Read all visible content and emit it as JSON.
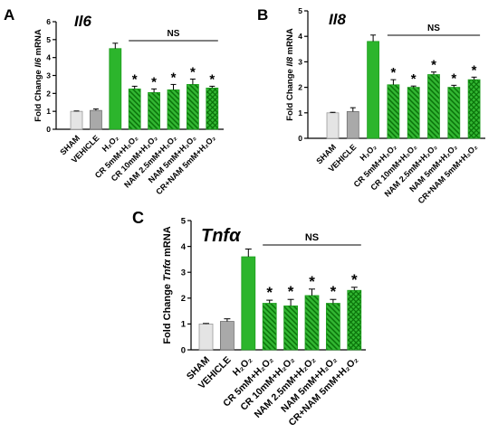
{
  "chart_data": [
    {
      "panel_label": "A",
      "type": "bar",
      "title": "Il6",
      "ylabel": [
        "Fold Change ",
        "Il6",
        " mRNA"
      ],
      "categories": [
        "SHAM",
        "VEHICLE",
        "H₂O₂",
        "CR 5mM+H₂O₂",
        "CR 10mM+H₂O₂",
        "NAM 2.5mM+H₂O₂",
        "NAM 5mM+H₂O₂",
        "CR+NAM 5mM+H₂O₂"
      ],
      "values": [
        1.0,
        1.05,
        4.5,
        2.25,
        2.05,
        2.2,
        2.5,
        2.3
      ],
      "errors": [
        0.02,
        0.08,
        0.3,
        0.15,
        0.2,
        0.3,
        0.3,
        0.1
      ],
      "significance": [
        "",
        "",
        "",
        "*",
        "*",
        "*",
        "*",
        "*"
      ],
      "annotation": {
        "text": "NS",
        "from": 3,
        "to": 7
      },
      "ylim": [
        0,
        6
      ],
      "yticks": [
        0,
        1,
        2,
        3,
        4,
        5,
        6
      ],
      "grid": false,
      "colors": [
        "#e4e4e4",
        "#a9a9a9",
        "#2cb52c",
        "#33b833",
        "#33b833",
        "#33b833",
        "#33b833",
        "#33b833"
      ],
      "edge_colors": [
        "#9a9a9a",
        "#6f6f6f",
        "#1e9e1e",
        "#1e9e1e",
        "#1e9e1e",
        "#1e9e1e",
        "#1e9e1e",
        "#1e9e1e"
      ],
      "hatch_color": "#087008"
    },
    {
      "panel_label": "B",
      "type": "bar",
      "title": "Il8",
      "ylabel": [
        "Fold Change ",
        "Il8",
        " mRNA"
      ],
      "categories": [
        "SHAM",
        "VEHICLE",
        "H₂O₂",
        "CR 5mM+H₂O₂",
        "CR 10mM+H₂O₂",
        "NAM 2.5mM+H₂O₂",
        "NAM 5mM+H₂O₂",
        "CR+NAM 5mM+H₂O₂"
      ],
      "values": [
        1.0,
        1.05,
        3.8,
        2.1,
        2.0,
        2.5,
        2.0,
        2.3
      ],
      "errors": [
        0.02,
        0.15,
        0.25,
        0.2,
        0.05,
        0.1,
        0.08,
        0.1
      ],
      "significance": [
        "",
        "",
        "",
        "*",
        "*",
        "*",
        "*",
        "*"
      ],
      "annotation": {
        "text": "NS",
        "from": 3,
        "to": 7
      },
      "ylim": [
        0,
        5
      ],
      "yticks": [
        0,
        1,
        2,
        3,
        4,
        5
      ],
      "grid": false,
      "colors": [
        "#e4e4e4",
        "#a9a9a9",
        "#2cb52c",
        "#33b833",
        "#33b833",
        "#33b833",
        "#33b833",
        "#33b833"
      ],
      "edge_colors": [
        "#9a9a9a",
        "#6f6f6f",
        "#1e9e1e",
        "#1e9e1e",
        "#1e9e1e",
        "#1e9e1e",
        "#1e9e1e",
        "#1e9e1e"
      ],
      "hatch_color": "#087008"
    },
    {
      "panel_label": "C",
      "type": "bar",
      "title": "Tnfα",
      "ylabel": [
        "Fold Change ",
        "Tnfα",
        " mRNA"
      ],
      "categories": [
        "SHAM",
        "VEHICLE",
        "H₂O₂",
        "CR 5mM+H₂O₂",
        "CR 10mM+H₂O₂",
        "NAM 2.5mM+H₂O₂",
        "NAM 5mM+H₂O₂",
        "CR+NAM 5mM+H₂O₂"
      ],
      "values": [
        1.0,
        1.1,
        3.6,
        1.8,
        1.7,
        2.1,
        1.8,
        2.3
      ],
      "errors": [
        0.02,
        0.1,
        0.3,
        0.12,
        0.25,
        0.25,
        0.15,
        0.12
      ],
      "significance": [
        "",
        "",
        "",
        "*",
        "*",
        "*",
        "*",
        "*"
      ],
      "annotation": {
        "text": "NS",
        "from": 3,
        "to": 7
      },
      "ylim": [
        0,
        5
      ],
      "yticks": [
        0,
        1,
        2,
        3,
        4,
        5
      ],
      "grid": false,
      "colors": [
        "#e4e4e4",
        "#a9a9a9",
        "#2cb52c",
        "#33b833",
        "#33b833",
        "#33b833",
        "#33b833",
        "#33b833"
      ],
      "edge_colors": [
        "#9a9a9a",
        "#6f6f6f",
        "#1e9e1e",
        "#1e9e1e",
        "#1e9e1e",
        "#1e9e1e",
        "#1e9e1e",
        "#1e9e1e"
      ],
      "hatch_color": "#087008"
    }
  ]
}
